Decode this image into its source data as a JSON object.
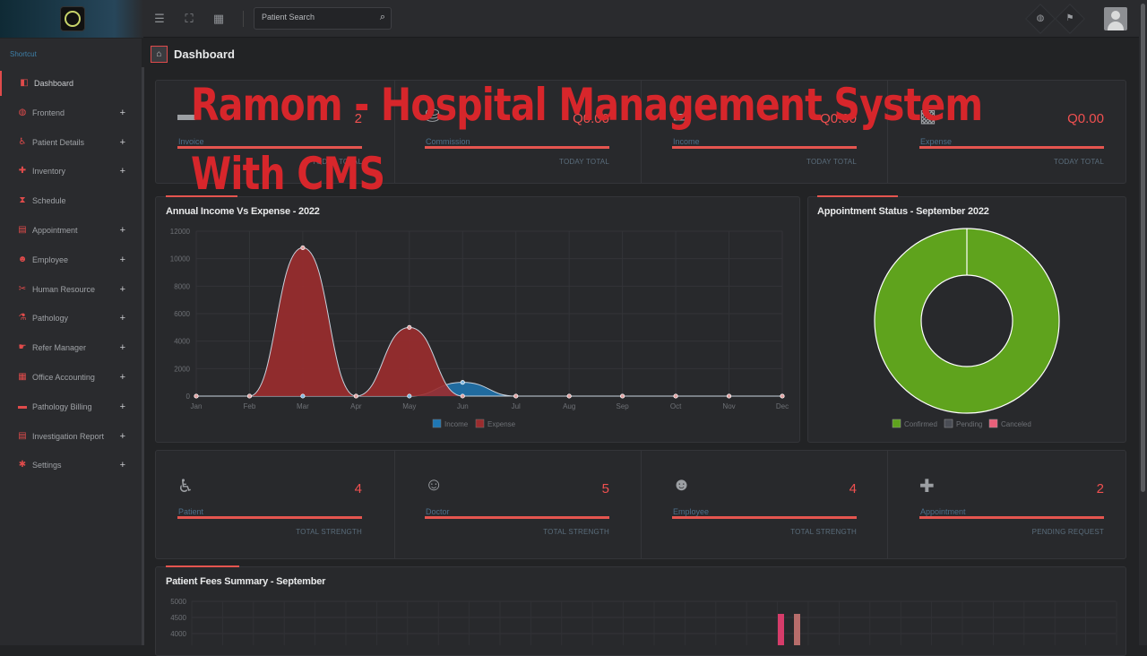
{
  "search": {
    "placeholder": "Patient Search"
  },
  "sidebar": {
    "shortcut": "Shortcut",
    "items": [
      {
        "label": "Dashboard",
        "icon": "dashboard-icon",
        "expandable": false
      },
      {
        "label": "Frontend",
        "icon": "globe-icon",
        "expandable": true
      },
      {
        "label": "Patient Details",
        "icon": "wheelchair-icon",
        "expandable": true
      },
      {
        "label": "Inventory",
        "icon": "pills-icon",
        "expandable": true
      },
      {
        "label": "Schedule",
        "icon": "hourglass-icon",
        "expandable": false
      },
      {
        "label": "Appointment",
        "icon": "clipboard-icon",
        "expandable": true
      },
      {
        "label": "Employee",
        "icon": "users-icon",
        "expandable": true
      },
      {
        "label": "Human Resource",
        "icon": "tools-icon",
        "expandable": true
      },
      {
        "label": "Pathology",
        "icon": "microscope-icon",
        "expandable": true
      },
      {
        "label": "Refer Manager",
        "icon": "handshake-icon",
        "expandable": true
      },
      {
        "label": "Office Accounting",
        "icon": "calculator-icon",
        "expandable": true
      },
      {
        "label": "Pathology Billing",
        "icon": "money-icon",
        "expandable": true
      },
      {
        "label": "Investigation Report",
        "icon": "report-icon",
        "expandable": true
      },
      {
        "label": "Settings",
        "icon": "gears-icon",
        "expandable": true
      }
    ],
    "plus": "+"
  },
  "breadcrumb": {
    "title": "Dashboard"
  },
  "overlay": {
    "line1": "Ramom - Hospital Management System",
    "line2": "With CMS"
  },
  "top_stats": [
    {
      "label": "Invoice",
      "value": "2",
      "footer": "TODAY TOTAL",
      "icon": "invoice-icon"
    },
    {
      "label": "Commission",
      "value": "Q0.00",
      "footer": "TODAY TOTAL",
      "icon": "commission-icon"
    },
    {
      "label": "Income",
      "value": "Q0.00",
      "footer": "TODAY TOTAL",
      "icon": "income-icon"
    },
    {
      "label": "Expense",
      "value": "Q0.00",
      "footer": "TODAY TOTAL",
      "icon": "expense-icon"
    }
  ],
  "bottom_stats": [
    {
      "label": "Patient",
      "value": "4",
      "footer": "TOTAL STRENGTH",
      "icon": "wheelchair-icon"
    },
    {
      "label": "Doctor",
      "value": "5",
      "footer": "TOTAL STRENGTH",
      "icon": "doctor-icon"
    },
    {
      "label": "Employee",
      "value": "4",
      "footer": "TOTAL STRENGTH",
      "icon": "users-icon"
    },
    {
      "label": "Appointment",
      "value": "2",
      "footer": "PENDING REQUEST",
      "icon": "clipboard-plus-icon"
    }
  ],
  "colors": {
    "accent": "#e5554f",
    "income": "#1f77b4",
    "expense": "#9b2c2e",
    "confirmed": "#5fa31d",
    "pending": "#4a4d55",
    "canceled": "#e8607a"
  },
  "chart_data": [
    {
      "type": "area",
      "title": "Annual Income Vs Expense - 2022",
      "categories": [
        "Jan",
        "Feb",
        "Mar",
        "Apr",
        "May",
        "Jun",
        "Jul",
        "Aug",
        "Sep",
        "Oct",
        "Nov",
        "Dec"
      ],
      "yticks": [
        "0",
        "2000",
        "4000",
        "6000",
        "8000",
        "10000",
        "12000"
      ],
      "ylim": [
        0,
        12000
      ],
      "series": [
        {
          "name": "Income",
          "values": [
            0,
            0,
            0,
            0,
            0,
            1000,
            0,
            0,
            0,
            0,
            0,
            0
          ]
        },
        {
          "name": "Expense",
          "values": [
            0,
            0,
            10800,
            0,
            5000,
            0,
            0,
            0,
            0,
            0,
            0,
            0
          ]
        }
      ],
      "legend": "bottom"
    },
    {
      "type": "pie",
      "title": "Appointment Status - September 2022",
      "labels": [
        "Confirmed",
        "Pending",
        "Canceled"
      ],
      "values": [
        100,
        0,
        0
      ],
      "legend": "bottom"
    },
    {
      "type": "bar",
      "title": "Patient Fees Summary - September",
      "yticks": [
        "4000",
        "4500",
        "5000"
      ],
      "series_colors": [
        "#d63c6a",
        "#b76d6b"
      ]
    }
  ]
}
